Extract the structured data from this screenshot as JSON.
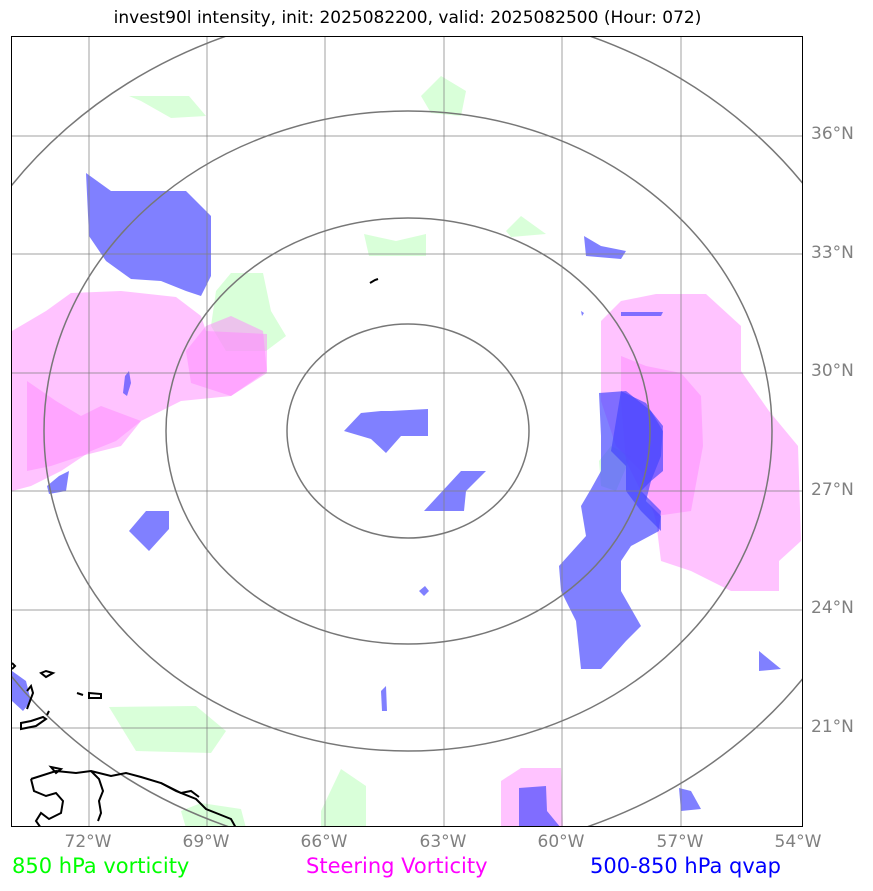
{
  "title": "invest90l intensity, init: 2025082200, valid: 2025082500 (Hour: 072)",
  "lat_labels": [
    "36°N",
    "33°N",
    "30°N",
    "27°N",
    "24°N",
    "21°N"
  ],
  "lon_labels": [
    "72°W",
    "69°W",
    "66°W",
    "63°W",
    "60°W",
    "57°W",
    "54°W"
  ],
  "legend": {
    "vorticity_850": "850 hPa vorticity",
    "steering": "Steering Vorticity",
    "qvap": "500-850 hPa qvap"
  },
  "colors": {
    "vorticity_850": "#00ff00",
    "steering": "#ff00ff",
    "qvap": "#0000ff",
    "grid": "#808080"
  }
}
